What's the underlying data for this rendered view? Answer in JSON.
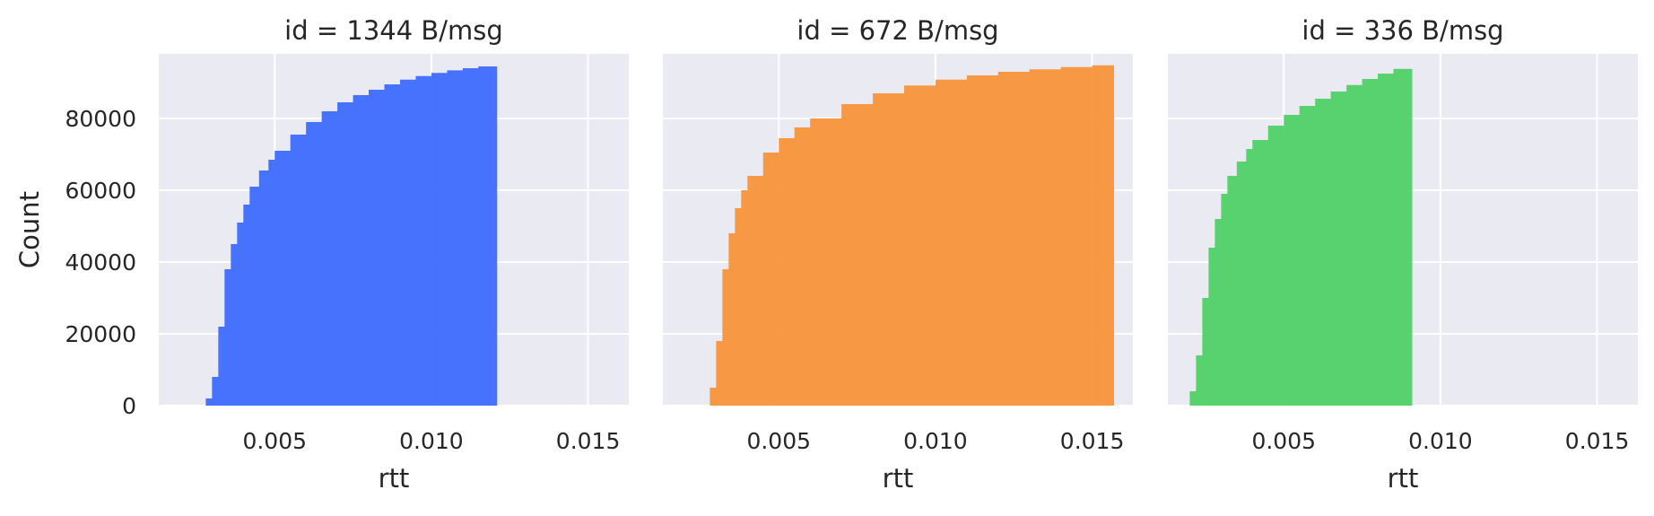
{
  "chart_data": {
    "type": "area",
    "style": "cumulative histogram, faceted",
    "ylabel": "Count",
    "xlabel": "rtt",
    "ylim": [
      0,
      98000
    ],
    "xlim": [
      0.0013,
      0.0163
    ],
    "yticks": [
      0,
      20000,
      40000,
      60000,
      80000
    ],
    "xticks": [
      0.005,
      0.01,
      0.015
    ],
    "ytick_labels": [
      "0",
      "20000",
      "40000",
      "60000",
      "80000"
    ],
    "xtick_labels": [
      "0.005",
      "0.010",
      "0.015"
    ],
    "grid": true,
    "background": "#eaeaf2",
    "panels": [
      {
        "title": "id = 1344 B/msg",
        "color": "#3d6bfd",
        "x": [
          0.0026,
          0.0028,
          0.003,
          0.0032,
          0.0034,
          0.0036,
          0.0038,
          0.004,
          0.0042,
          0.0045,
          0.0048,
          0.005,
          0.0055,
          0.006,
          0.0065,
          0.007,
          0.0075,
          0.008,
          0.0085,
          0.009,
          0.0095,
          0.01,
          0.0105,
          0.011,
          0.0115,
          0.0121
        ],
        "y": [
          0,
          2000,
          8000,
          22000,
          38000,
          45000,
          51000,
          56000,
          61000,
          65500,
          68500,
          71000,
          75500,
          79000,
          82000,
          84500,
          86500,
          88000,
          89500,
          90800,
          91800,
          92700,
          93400,
          94000,
          94500,
          95000
        ]
      },
      {
        "title": "id = 672 B/msg",
        "color": "#f8953a",
        "x": [
          0.0026,
          0.0028,
          0.003,
          0.0032,
          0.0034,
          0.0036,
          0.0038,
          0.004,
          0.0045,
          0.005,
          0.0055,
          0.006,
          0.007,
          0.008,
          0.009,
          0.01,
          0.011,
          0.012,
          0.013,
          0.014,
          0.015,
          0.0157
        ],
        "y": [
          0,
          5000,
          18000,
          38000,
          48000,
          55000,
          60000,
          64000,
          70500,
          74500,
          77500,
          80000,
          84000,
          87000,
          89200,
          90800,
          92000,
          93000,
          93700,
          94300,
          94800,
          95200
        ]
      },
      {
        "title": "id = 336 B/msg",
        "color": "#4fd166",
        "x": [
          0.0018,
          0.002,
          0.0022,
          0.0024,
          0.0026,
          0.0028,
          0.003,
          0.0032,
          0.0035,
          0.0038,
          0.004,
          0.0045,
          0.005,
          0.0055,
          0.006,
          0.0065,
          0.007,
          0.0075,
          0.008,
          0.0085,
          0.0091
        ],
        "y": [
          0,
          4000,
          14000,
          30000,
          44000,
          52000,
          59000,
          64000,
          68000,
          71500,
          74000,
          78000,
          81000,
          83500,
          85500,
          87500,
          89300,
          91000,
          92500,
          93800,
          95200
        ]
      }
    ]
  }
}
